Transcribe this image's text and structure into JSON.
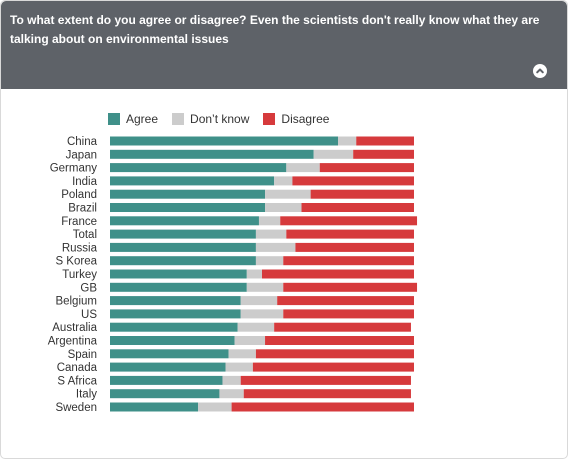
{
  "header": {
    "question": "To what extent do you agree or disagree? Even the scientists don't really know what they are talking about on environmental issues",
    "collapse_icon": "chevron-up-icon"
  },
  "colors": {
    "header_bg": "#5e6268",
    "agree": "#3f9089",
    "dont_know": "#cccccc",
    "disagree": "#d63a3c"
  },
  "chart_data": {
    "type": "bar",
    "orientation": "horizontal",
    "stacked": true,
    "unit": "percent",
    "xlim": [
      0,
      100
    ],
    "grid": false,
    "legend_position": "top",
    "categories": [
      "China",
      "Japan",
      "Germany",
      "India",
      "Poland",
      "Brazil",
      "France",
      "Total",
      "Russia",
      "S Korea",
      "Turkey",
      "GB",
      "Belgium",
      "US",
      "Australia",
      "Argentina",
      "Spain",
      "Canada",
      "S Africa",
      "Italy",
      "Sweden"
    ],
    "series": [
      {
        "name": "Agree",
        "color": "#3f9089",
        "values": [
          75,
          67,
          58,
          54,
          51,
          51,
          49,
          48,
          48,
          48,
          45,
          45,
          43,
          43,
          42,
          41,
          39,
          38,
          37,
          36,
          29
        ]
      },
      {
        "name": "Don’t know",
        "color": "#cccccc",
        "values": [
          6,
          13,
          11,
          6,
          15,
          12,
          7,
          10,
          13,
          9,
          5,
          12,
          12,
          14,
          12,
          10,
          9,
          9,
          6,
          8,
          11
        ]
      },
      {
        "name": "Disagree",
        "color": "#d63a3c",
        "values": [
          19,
          20,
          31,
          40,
          34,
          37,
          45,
          42,
          39,
          43,
          50,
          44,
          45,
          43,
          45,
          49,
          52,
          53,
          56,
          55,
          60
        ]
      }
    ]
  }
}
